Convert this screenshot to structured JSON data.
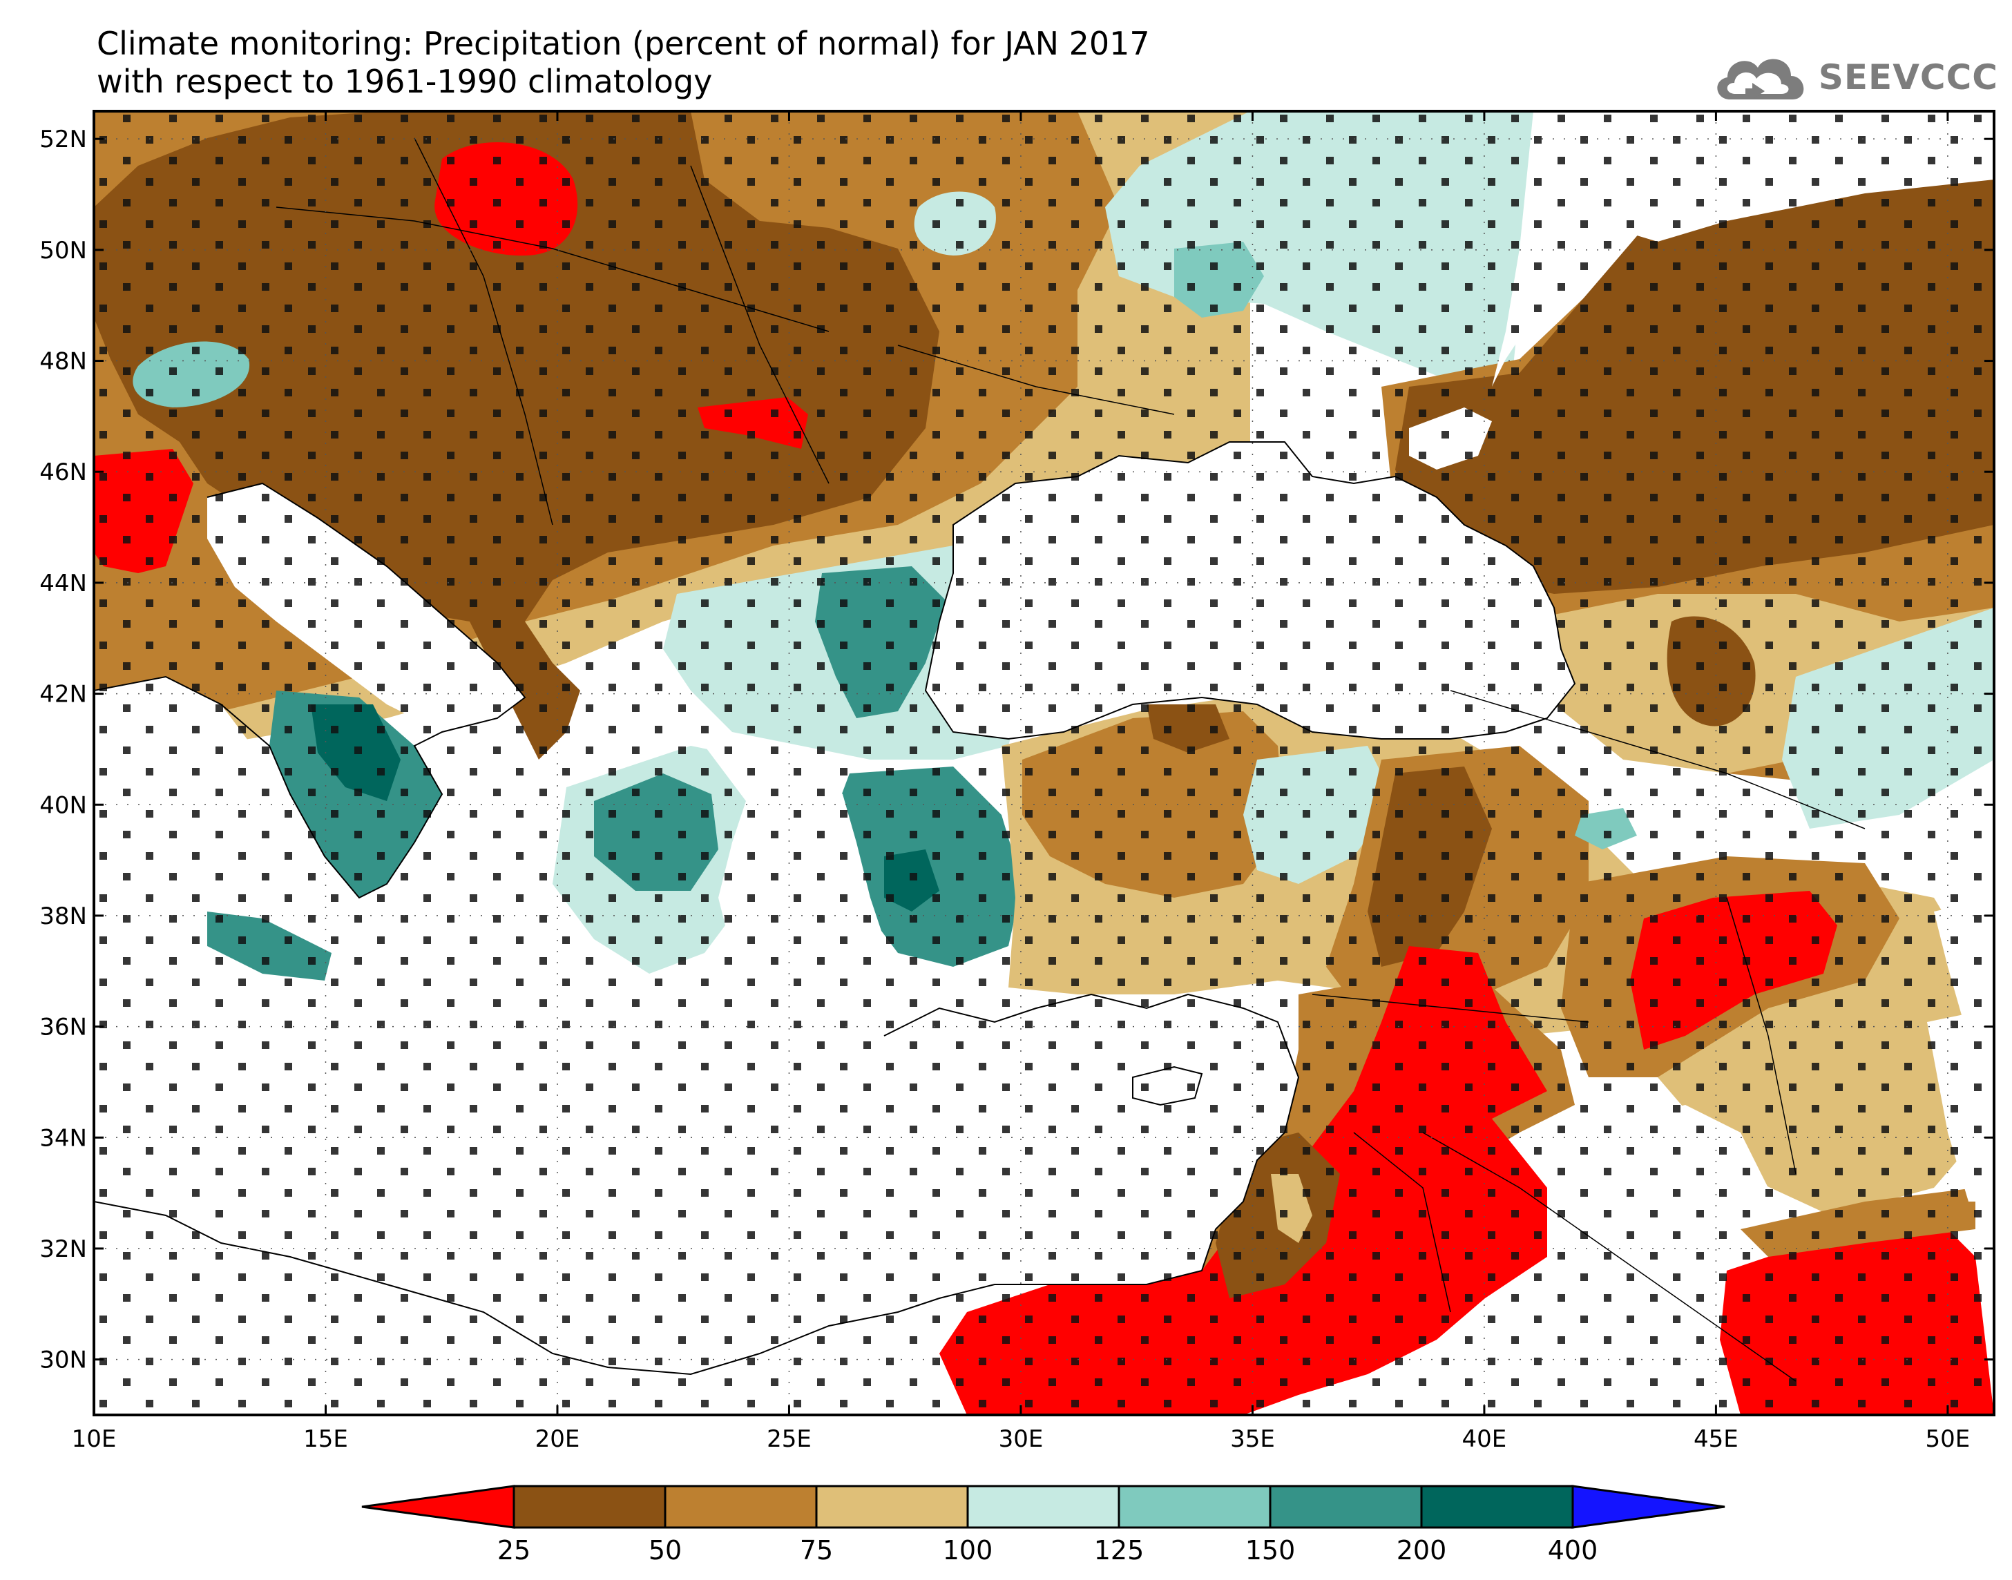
{
  "header": {
    "title_line1": "Climate monitoring: Precipitation (percent of normal) for JAN 2017",
    "title_line2": "with respect to 1961-1990 climatology",
    "logo_text": "SEEVCCC"
  },
  "map": {
    "lon_range": [
      10,
      51
    ],
    "lat_range": [
      29,
      52.5
    ],
    "lon_labels": [
      "10E",
      "15E",
      "20E",
      "25E",
      "30E",
      "35E",
      "40E",
      "45E",
      "50E"
    ],
    "lat_labels": [
      "52N",
      "50N",
      "48N",
      "46N",
      "44N",
      "42N",
      "40N",
      "38N",
      "36N",
      "34N",
      "32N",
      "30N"
    ]
  },
  "colorbar": {
    "labels": [
      "25",
      "50",
      "75",
      "100",
      "125",
      "150",
      "200",
      "400"
    ],
    "colors": [
      "#ff0000",
      "#8b5214",
      "#bd8030",
      "#dfbf78",
      "#c6eae2",
      "#7fcabe",
      "#359388",
      "#00665c",
      "#1414ff"
    ]
  },
  "colors": {
    "red": "#ff0000",
    "dark_brown": "#8b5214",
    "brown": "#bd8030",
    "tan": "#dfbf78",
    "pale_teal": "#c6eae2",
    "light_teal": "#7fcabe",
    "teal": "#359388",
    "dark_teal": "#00665c"
  }
}
